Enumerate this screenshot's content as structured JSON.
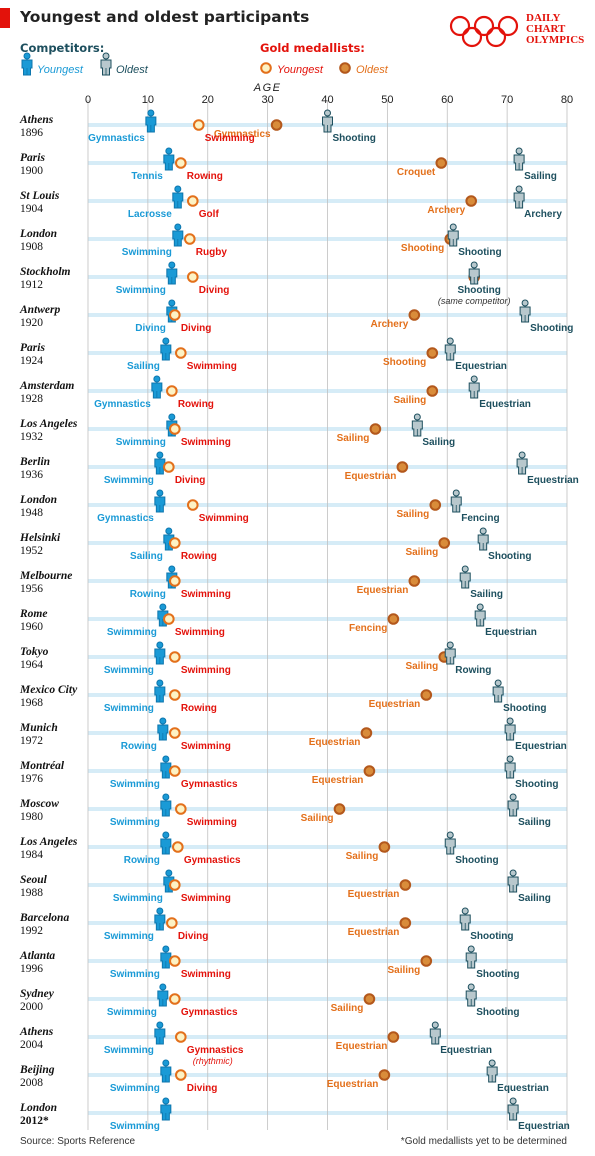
{
  "title": "Youngest and oldest participants",
  "brand": {
    "line1": "DAILY",
    "line2": "CHART",
    "line3": "OLYMPICS"
  },
  "legend": {
    "competitors_title": "Competitors:",
    "youngest_competitor": "Youngest",
    "oldest_competitor": "Oldest",
    "medallists_title": "Gold medallists:",
    "youngest_medallist": "Youngest",
    "oldest_medallist": "Oldest"
  },
  "source": "Source: Sports Reference",
  "footnote": "*Gold medallists yet to be determined",
  "colors": {
    "young": "#1a9ad6",
    "old": "#1d4f5e",
    "young_gold_fill": "#fdf2c4",
    "young_gold_ring": "#e3701b",
    "old_gold_fill": "#d98c3a",
    "old_gold_ring": "#b3581c",
    "young_gold_text": "#e3120b",
    "old_gold_text": "#e3701b",
    "accent": "#e3120b",
    "band": "#d6ecf7",
    "grid": "#bfbfbf"
  },
  "chart_data": {
    "type": "scatter",
    "xlabel": "AGE",
    "xlim": [
      0,
      80
    ],
    "xticks": [
      0,
      10,
      20,
      30,
      40,
      50,
      60,
      70,
      80
    ],
    "series": [
      {
        "name": "Youngest competitor"
      },
      {
        "name": "Oldest competitor"
      },
      {
        "name": "Youngest gold medallist"
      },
      {
        "name": "Oldest gold medallist"
      }
    ],
    "games": [
      {
        "city": "Athens",
        "year": "1896",
        "yc": 10.5,
        "yc_sport": "Gymnastics",
        "oc": 40,
        "oc_sport": "Shooting",
        "yg": 18.5,
        "yg_sport": "Swimming",
        "og": 31.5,
        "og_sport": "Gymnastics"
      },
      {
        "city": "Paris",
        "year": "1900",
        "yc": 13.5,
        "yc_sport": "Tennis",
        "oc": 72,
        "oc_sport": "Sailing",
        "yg": 15.5,
        "yg_sport": "Rowing",
        "og": 59,
        "og_sport": "Croquet"
      },
      {
        "city": "St Louis",
        "year": "1904",
        "yc": 15,
        "yc_sport": "Lacrosse",
        "oc": 72,
        "oc_sport": "Archery",
        "yg": 17.5,
        "yg_sport": "Golf",
        "og": 64,
        "og_sport": "Archery"
      },
      {
        "city": "London",
        "year": "1908",
        "yc": 15,
        "yc_sport": "Swimming",
        "oc": 61,
        "oc_sport": "Shooting",
        "yg": 17,
        "yg_sport": "Rugby",
        "og": 60.5,
        "og_sport": "Shooting"
      },
      {
        "city": "Stockholm",
        "year": "1912",
        "yc": 14,
        "yc_sport": "Swimming",
        "oc": 64.5,
        "oc_sport": "Shooting",
        "oc_note": "(same competitor)",
        "yg": 17.5,
        "yg_sport": "Diving",
        "og": 64.5,
        "og_sport": ""
      },
      {
        "city": "Antwerp",
        "year": "1920",
        "yc": 14,
        "yc_sport": "Diving",
        "oc": 73,
        "oc_sport": "Shooting",
        "yg": 14.5,
        "yg_sport": "Diving",
        "og": 54.5,
        "og_sport": "Archery"
      },
      {
        "city": "Paris",
        "year": "1924",
        "yc": 13,
        "yc_sport": "Sailing",
        "oc": 60.5,
        "oc_sport": "Equestrian",
        "yg": 15.5,
        "yg_sport": "Swimming",
        "og": 57.5,
        "og_sport": "Shooting"
      },
      {
        "city": "Amsterdam",
        "year": "1928",
        "yc": 11.5,
        "yc_sport": "Gymnastics",
        "oc": 64.5,
        "oc_sport": "Equestrian",
        "yg": 14,
        "yg_sport": "Rowing",
        "og": 57.5,
        "og_sport": "Sailing"
      },
      {
        "city": "Los Angeles",
        "year": "1932",
        "yc": 14,
        "yc_sport": "Swimming",
        "oc": 55,
        "oc_sport": "Sailing",
        "yg": 14.5,
        "yg_sport": "Swimming",
        "og": 48,
        "og_sport": "Sailing"
      },
      {
        "city": "Berlin",
        "year": "1936",
        "yc": 12,
        "yc_sport": "Swimming",
        "oc": 72.5,
        "oc_sport": "Equestrian",
        "yg": 13.5,
        "yg_sport": "Diving",
        "og": 52.5,
        "og_sport": "Equestrian"
      },
      {
        "city": "London",
        "year": "1948",
        "yc": 12,
        "yc_sport": "Gymnastics",
        "oc": 61.5,
        "oc_sport": "Fencing",
        "yg": 17.5,
        "yg_sport": "Swimming",
        "og": 58,
        "og_sport": "Sailing"
      },
      {
        "city": "Helsinki",
        "year": "1952",
        "yc": 13.5,
        "yc_sport": "Sailing",
        "oc": 66,
        "oc_sport": "Shooting",
        "yg": 14.5,
        "yg_sport": "Rowing",
        "og": 59.5,
        "og_sport": "Sailing"
      },
      {
        "city": "Melbourne",
        "year": "1956",
        "yc": 14,
        "yc_sport": "Rowing",
        "oc": 63,
        "oc_sport": "Sailing",
        "yg": 14.5,
        "yg_sport": "Swimming",
        "og": 54.5,
        "og_sport": "Equestrian"
      },
      {
        "city": "Rome",
        "year": "1960",
        "yc": 12.5,
        "yc_sport": "Swimming",
        "oc": 65.5,
        "oc_sport": "Equestrian",
        "yg": 13.5,
        "yg_sport": "Swimming",
        "og": 51,
        "og_sport": "Fencing"
      },
      {
        "city": "Tokyo",
        "year": "1964",
        "yc": 12,
        "yc_sport": "Swimming",
        "oc": 60.5,
        "oc_sport": "Rowing",
        "yg": 14.5,
        "yg_sport": "Swimming",
        "og": 59.5,
        "og_sport": "Sailing"
      },
      {
        "city": "Mexico City",
        "year": "1968",
        "yc": 12,
        "yc_sport": "Swimming",
        "oc": 68.5,
        "oc_sport": "Shooting",
        "yg": 14.5,
        "yg_sport": "Rowing",
        "og": 56.5,
        "og_sport": "Equestrian"
      },
      {
        "city": "Munich",
        "year": "1972",
        "yc": 12.5,
        "yc_sport": "Rowing",
        "oc": 70.5,
        "oc_sport": "Equestrian",
        "yg": 14.5,
        "yg_sport": "Swimming",
        "og": 46.5,
        "og_sport": "Equestrian"
      },
      {
        "city": "Montréal",
        "year": "1976",
        "yc": 13,
        "yc_sport": "Swimming",
        "oc": 70.5,
        "oc_sport": "Shooting",
        "yg": 14.5,
        "yg_sport": "Gymnastics",
        "og": 47,
        "og_sport": "Equestrian"
      },
      {
        "city": "Moscow",
        "year": "1980",
        "yc": 13,
        "yc_sport": "Swimming",
        "oc": 71,
        "oc_sport": "Sailing",
        "yg": 15.5,
        "yg_sport": "Swimming",
        "og": 42,
        "og_sport": "Sailing"
      },
      {
        "city": "Los Angeles",
        "year": "1984",
        "yc": 13,
        "yc_sport": "Rowing",
        "oc": 60.5,
        "oc_sport": "Shooting",
        "yg": 15,
        "yg_sport": "Gymnastics",
        "og": 49.5,
        "og_sport": "Sailing"
      },
      {
        "city": "Seoul",
        "year": "1988",
        "yc": 13.5,
        "yc_sport": "Swimming",
        "oc": 71,
        "oc_sport": "Sailing",
        "yg": 14.5,
        "yg_sport": "Swimming",
        "og": 53,
        "og_sport": "Equestrian"
      },
      {
        "city": "Barcelona",
        "year": "1992",
        "yc": 12,
        "yc_sport": "Swimming",
        "oc": 63,
        "oc_sport": "Shooting",
        "yg": 14,
        "yg_sport": "Diving",
        "og": 53,
        "og_sport": "Equestrian"
      },
      {
        "city": "Atlanta",
        "year": "1996",
        "yc": 13,
        "yc_sport": "Swimming",
        "oc": 64,
        "oc_sport": "Shooting",
        "yg": 14.5,
        "yg_sport": "Swimming",
        "og": 56.5,
        "og_sport": "Sailing"
      },
      {
        "city": "Sydney",
        "year": "2000",
        "yc": 12.5,
        "yc_sport": "Swimming",
        "oc": 64,
        "oc_sport": "Shooting",
        "yg": 14.5,
        "yg_sport": "Gymnastics",
        "og": 47,
        "og_sport": "Sailing"
      },
      {
        "city": "Athens",
        "year": "2004",
        "yc": 12,
        "yc_sport": "Swimming",
        "oc": 58,
        "oc_sport": "Equestrian",
        "yg": 15.5,
        "yg_sport": "Gymnastics",
        "yg_note": "(rhythmic)",
        "og": 51,
        "og_sport": "Equestrian"
      },
      {
        "city": "Beijing",
        "year": "2008",
        "yc": 13,
        "yc_sport": "Swimming",
        "oc": 67.5,
        "oc_sport": "Equestrian",
        "yg": 15.5,
        "yg_sport": "Diving",
        "og": 49.5,
        "og_sport": "Equestrian"
      },
      {
        "city": "London",
        "year": "2012*",
        "yc": 13,
        "yc_sport": "Swimming",
        "oc": 71,
        "oc_sport": "Equestrian",
        "yg": null,
        "yg_sport": "",
        "og": null,
        "og_sport": ""
      }
    ]
  }
}
